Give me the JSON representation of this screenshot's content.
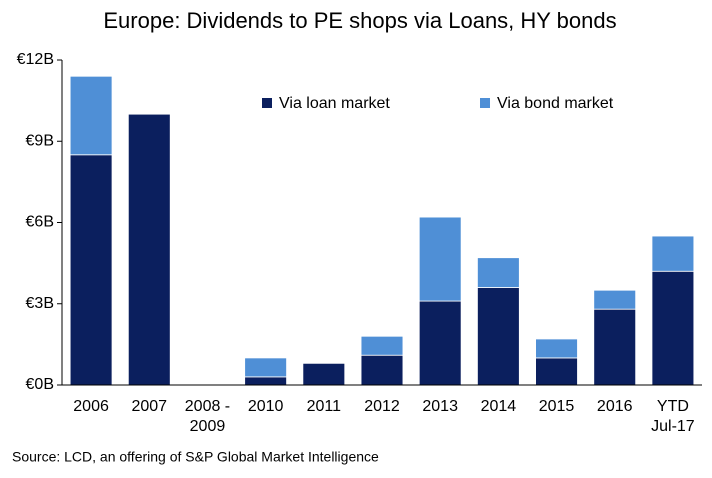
{
  "chart_data": {
    "type": "stacked-bar",
    "title": "Europe: Dividends to PE shops via Loans, HY bonds",
    "source": "Source: LCD, an offering of S&P Global Market Intelligence",
    "categories": [
      "2006",
      "2007",
      "2008 -\n2009",
      "2010",
      "2011",
      "2012",
      "2013",
      "2014",
      "2015",
      "2016",
      "YTD\nJul-17"
    ],
    "series": [
      {
        "name": "Via loan market",
        "color": "#0b1f5e",
        "values": [
          8.5,
          10.0,
          0,
          0.3,
          0.8,
          1.1,
          3.1,
          3.6,
          1.0,
          2.8,
          4.2
        ]
      },
      {
        "name": "Via bond market",
        "color": "#4f8fd6",
        "values": [
          2.9,
          0,
          0,
          0.7,
          0,
          0.7,
          3.1,
          1.1,
          0.7,
          0.7,
          1.3
        ]
      }
    ],
    "ylim": [
      0,
      12
    ],
    "yticks": [
      {
        "value": 0,
        "label": "€0B"
      },
      {
        "value": 3,
        "label": "€3B"
      },
      {
        "value": 6,
        "label": "€6B"
      },
      {
        "value": 9,
        "label": "€9B"
      },
      {
        "value": 12,
        "label": "€12B"
      }
    ],
    "grid": false
  }
}
